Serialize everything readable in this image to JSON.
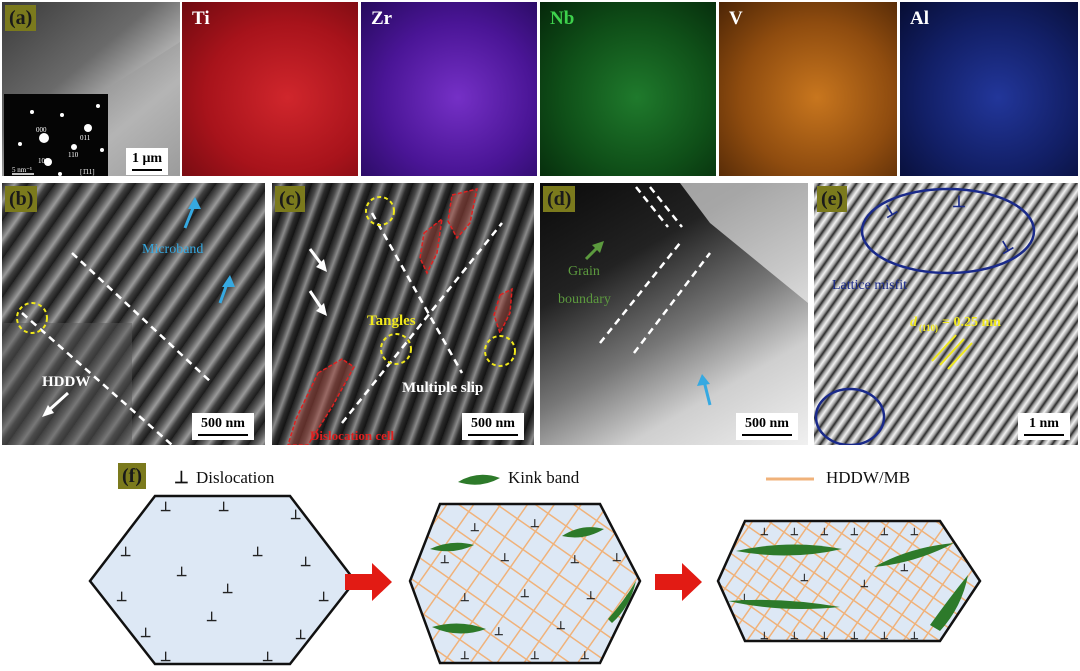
{
  "panels": {
    "a": {
      "label": "(a)",
      "scale": "1 μm",
      "saed_scale": "5 nm⁻¹",
      "saed_zone": "[1̄11]",
      "spots": [
        "000",
        "011",
        "110",
        "101"
      ]
    },
    "maps": [
      {
        "element": "Ti",
        "color": "#c8242b"
      },
      {
        "element": "Zr",
        "color": "#8a3cd8"
      },
      {
        "element": "Nb",
        "color": "#2d9a3a"
      },
      {
        "element": "V",
        "color": "#d47a22"
      },
      {
        "element": "Al",
        "color": "#3a52c8"
      }
    ],
    "b": {
      "label": "(b)",
      "scale": "500 nm",
      "microband": "Microband",
      "hddw": "HDDW"
    },
    "c": {
      "label": "(c)",
      "scale": "500 nm",
      "tangles": "Tangles",
      "multiple_slip": "Multiple slip",
      "dislocation_cell": "Dislocation cell"
    },
    "d": {
      "label": "(d)",
      "scale": "500 nm",
      "grain_boundary": [
        "Grain",
        "boundary"
      ]
    },
    "e": {
      "label": "(e)",
      "scale": "1 nm",
      "misfit": "Lattice misfit",
      "d_main": "d",
      "d_sub": "(110)",
      "d_value": " = 0.25 nm"
    },
    "f": {
      "label": "(f)",
      "legend_dislocation": "Dislocation",
      "legend_kink": "Kink band",
      "legend_hddw": "HDDW/MB",
      "dislocation_symbol": "⊥"
    }
  },
  "colors": {
    "label_bg": "#7b7a1d",
    "hexagon_fill": "#dde8f5",
    "mesh": "#f0b27a",
    "kink": "#2d7a2a",
    "arrow": "#e21b14"
  }
}
